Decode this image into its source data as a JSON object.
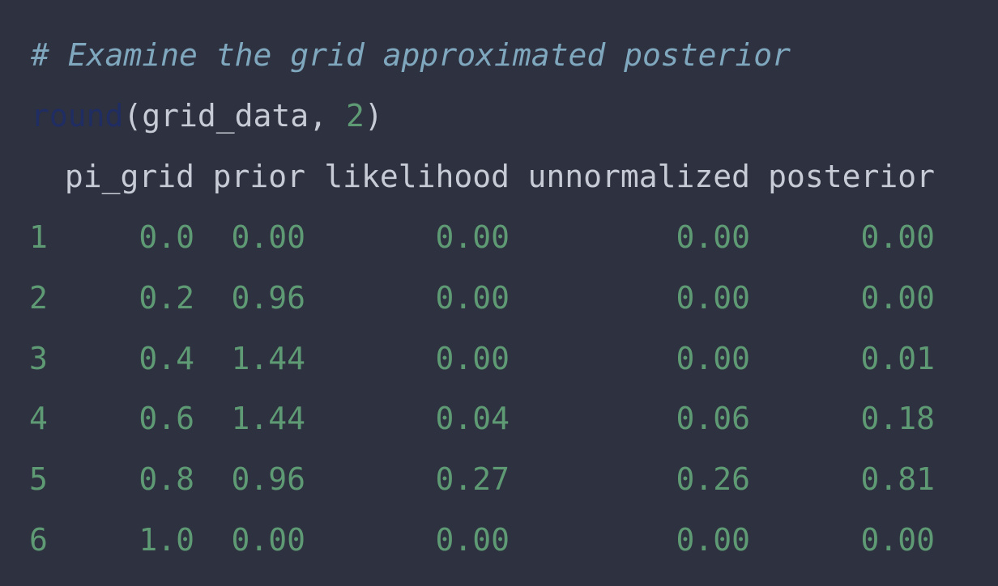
{
  "comment": "# Examine the grid approximated posterior",
  "call": {
    "fn": "round",
    "open": "(",
    "arg": "grid_data, ",
    "digits": "2",
    "close": ")"
  },
  "table": {
    "columns": [
      "pi_grid",
      "prior",
      "likelihood",
      "unnormalized",
      "posterior"
    ],
    "rows": [
      {
        "index": "1",
        "cells": [
          "0.0",
          "0.00",
          "0.00",
          "0.00",
          "0.00"
        ]
      },
      {
        "index": "2",
        "cells": [
          "0.2",
          "0.96",
          "0.00",
          "0.00",
          "0.00"
        ]
      },
      {
        "index": "3",
        "cells": [
          "0.4",
          "1.44",
          "0.00",
          "0.00",
          "0.01"
        ]
      },
      {
        "index": "4",
        "cells": [
          "0.6",
          "1.44",
          "0.04",
          "0.06",
          "0.18"
        ]
      },
      {
        "index": "5",
        "cells": [
          "0.8",
          "0.96",
          "0.27",
          "0.26",
          "0.81"
        ]
      },
      {
        "index": "6",
        "cells": [
          "1.0",
          "0.00",
          "0.00",
          "0.00",
          "0.00"
        ]
      }
    ]
  }
}
